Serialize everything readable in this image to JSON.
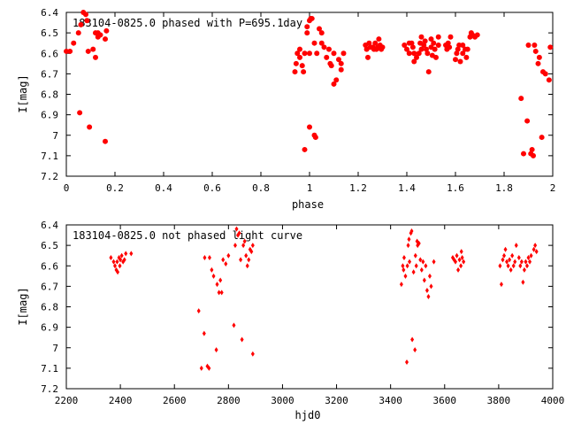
{
  "chart_data": [
    {
      "type": "scatter",
      "title": "183104-0825.0 phased with P=695.1day",
      "xlabel": "phase",
      "ylabel": "I[mag]",
      "xlim": [
        0,
        2
      ],
      "ylim": [
        7.2,
        6.4
      ],
      "x_ticks": [
        "0",
        "0.2",
        "0.4",
        "0.6",
        "0.8",
        "1",
        "1.2",
        "1.4",
        "1.6",
        "1.8",
        "2"
      ],
      "y_ticks": [
        "6.4",
        "6.5",
        "6.6",
        "6.7",
        "6.8",
        "6.9",
        "7",
        "7.1",
        "7.2"
      ],
      "grid": false,
      "legend": "none",
      "marker": "filled-circle",
      "color": "#ff0000",
      "points": [
        [
          0.0,
          6.59
        ],
        [
          0.015,
          6.59
        ],
        [
          0.03,
          6.55
        ],
        [
          0.05,
          6.5
        ],
        [
          0.055,
          6.89
        ],
        [
          0.06,
          6.46
        ],
        [
          0.07,
          6.4
        ],
        [
          0.08,
          6.41
        ],
        [
          0.085,
          6.44
        ],
        [
          0.09,
          6.59
        ],
        [
          0.095,
          6.96
        ],
        [
          0.11,
          6.58
        ],
        [
          0.12,
          6.5
        ],
        [
          0.12,
          6.62
        ],
        [
          0.13,
          6.52
        ],
        [
          0.13,
          6.5
        ],
        [
          0.14,
          6.51
        ],
        [
          0.16,
          7.03
        ],
        [
          0.16,
          6.53
        ],
        [
          0.165,
          6.49
        ],
        [
          0.94,
          6.69
        ],
        [
          0.945,
          6.65
        ],
        [
          0.95,
          6.6
        ],
        [
          0.96,
          6.62
        ],
        [
          0.96,
          6.58
        ],
        [
          0.97,
          6.66
        ],
        [
          0.975,
          6.69
        ],
        [
          0.98,
          7.07
        ],
        [
          0.98,
          6.6
        ],
        [
          0.99,
          6.5
        ],
        [
          0.99,
          6.47
        ],
        [
          1.0,
          6.6
        ],
        [
          1.0,
          6.44
        ],
        [
          1.005,
          6.43
        ],
        [
          1.01,
          6.43
        ],
        [
          1.0,
          6.96
        ],
        [
          1.02,
          7.0
        ],
        [
          1.025,
          7.01
        ],
        [
          1.02,
          6.55
        ],
        [
          1.03,
          6.6
        ],
        [
          1.04,
          6.48
        ],
        [
          1.05,
          6.55
        ],
        [
          1.05,
          6.5
        ],
        [
          1.06,
          6.57
        ],
        [
          1.07,
          6.62
        ],
        [
          1.08,
          6.58
        ],
        [
          1.085,
          6.65
        ],
        [
          1.09,
          6.66
        ],
        [
          1.1,
          6.6
        ],
        [
          1.1,
          6.75
        ],
        [
          1.11,
          6.73
        ],
        [
          1.12,
          6.63
        ],
        [
          1.13,
          6.65
        ],
        [
          1.13,
          6.68
        ],
        [
          1.14,
          6.6
        ],
        [
          1.23,
          6.56
        ],
        [
          1.235,
          6.58
        ],
        [
          1.24,
          6.62
        ],
        [
          1.245,
          6.55
        ],
        [
          1.25,
          6.57
        ],
        [
          1.26,
          6.57
        ],
        [
          1.265,
          6.58
        ],
        [
          1.27,
          6.55
        ],
        [
          1.275,
          6.58
        ],
        [
          1.28,
          6.57
        ],
        [
          1.285,
          6.53
        ],
        [
          1.29,
          6.56
        ],
        [
          1.295,
          6.58
        ],
        [
          1.3,
          6.57
        ],
        [
          1.39,
          6.56
        ],
        [
          1.4,
          6.58
        ],
        [
          1.41,
          6.6
        ],
        [
          1.41,
          6.55
        ],
        [
          1.42,
          6.55
        ],
        [
          1.425,
          6.57
        ],
        [
          1.43,
          6.6
        ],
        [
          1.43,
          6.64
        ],
        [
          1.44,
          6.62
        ],
        [
          1.45,
          6.6
        ],
        [
          1.455,
          6.55
        ],
        [
          1.46,
          6.58
        ],
        [
          1.46,
          6.52
        ],
        [
          1.47,
          6.56
        ],
        [
          1.475,
          6.54
        ],
        [
          1.48,
          6.58
        ],
        [
          1.485,
          6.6
        ],
        [
          1.49,
          6.69
        ],
        [
          1.5,
          6.57
        ],
        [
          1.5,
          6.53
        ],
        [
          1.505,
          6.61
        ],
        [
          1.51,
          6.55
        ],
        [
          1.515,
          6.58
        ],
        [
          1.52,
          6.62
        ],
        [
          1.53,
          6.56
        ],
        [
          1.53,
          6.52
        ],
        [
          1.56,
          6.56
        ],
        [
          1.565,
          6.58
        ],
        [
          1.57,
          6.55
        ],
        [
          1.575,
          6.57
        ],
        [
          1.58,
          6.52
        ],
        [
          1.6,
          6.63
        ],
        [
          1.605,
          6.6
        ],
        [
          1.61,
          6.58
        ],
        [
          1.615,
          6.56
        ],
        [
          1.62,
          6.64
        ],
        [
          1.63,
          6.6
        ],
        [
          1.63,
          6.56
        ],
        [
          1.64,
          6.58
        ],
        [
          1.645,
          6.62
        ],
        [
          1.65,
          6.58
        ],
        [
          1.66,
          6.52
        ],
        [
          1.665,
          6.5
        ],
        [
          1.67,
          6.51
        ],
        [
          1.68,
          6.52
        ],
        [
          1.69,
          6.51
        ],
        [
          1.87,
          6.82
        ],
        [
          1.88,
          7.09
        ],
        [
          1.895,
          6.93
        ],
        [
          1.9,
          6.56
        ],
        [
          1.91,
          7.09
        ],
        [
          1.915,
          7.07
        ],
        [
          1.92,
          7.1
        ],
        [
          1.925,
          6.56
        ],
        [
          1.93,
          6.59
        ],
        [
          1.94,
          6.65
        ],
        [
          1.945,
          6.62
        ],
        [
          1.955,
          7.01
        ],
        [
          1.96,
          6.69
        ],
        [
          1.97,
          6.7
        ],
        [
          1.985,
          6.73
        ],
        [
          1.99,
          6.57
        ]
      ]
    },
    {
      "type": "scatter",
      "title": "183104-0825.0 not phased light curve",
      "xlabel": "hjd0",
      "ylabel": "I[mag]",
      "xlim": [
        2200,
        4000
      ],
      "ylim": [
        7.2,
        6.4
      ],
      "x_ticks": [
        "2200",
        "2400",
        "2600",
        "2800",
        "3000",
        "3200",
        "3400",
        "3600",
        "3800",
        "4000"
      ],
      "y_ticks": [
        "6.4",
        "6.5",
        "6.6",
        "6.7",
        "6.8",
        "6.9",
        "7",
        "7.1",
        "7.2"
      ],
      "grid": false,
      "legend": "none",
      "marker": "filled-diamond",
      "color": "#ff0000",
      "points": [
        [
          2365,
          6.56
        ],
        [
          2375,
          6.58
        ],
        [
          2380,
          6.6
        ],
        [
          2385,
          6.62
        ],
        [
          2388,
          6.58
        ],
        [
          2390,
          6.63
        ],
        [
          2395,
          6.56
        ],
        [
          2398,
          6.6
        ],
        [
          2400,
          6.57
        ],
        [
          2405,
          6.55
        ],
        [
          2410,
          6.58
        ],
        [
          2415,
          6.57
        ],
        [
          2420,
          6.54
        ],
        [
          2440,
          6.54
        ],
        [
          2690,
          6.82
        ],
        [
          2700,
          7.1
        ],
        [
          2710,
          6.93
        ],
        [
          2712,
          6.56
        ],
        [
          2722,
          7.09
        ],
        [
          2728,
          7.1
        ],
        [
          2730,
          6.56
        ],
        [
          2738,
          6.62
        ],
        [
          2745,
          6.65
        ],
        [
          2755,
          7.01
        ],
        [
          2758,
          6.69
        ],
        [
          2765,
          6.73
        ],
        [
          2770,
          6.67
        ],
        [
          2775,
          6.73
        ],
        [
          2780,
          6.57
        ],
        [
          2790,
          6.59
        ],
        [
          2800,
          6.55
        ],
        [
          2820,
          6.89
        ],
        [
          2825,
          6.5
        ],
        [
          2830,
          6.42
        ],
        [
          2835,
          6.45
        ],
        [
          2840,
          6.44
        ],
        [
          2845,
          6.57
        ],
        [
          2850,
          6.96
        ],
        [
          2855,
          6.5
        ],
        [
          2860,
          6.48
        ],
        [
          2865,
          6.55
        ],
        [
          2870,
          6.6
        ],
        [
          2875,
          6.57
        ],
        [
          2880,
          6.52
        ],
        [
          2885,
          6.53
        ],
        [
          2890,
          6.5
        ],
        [
          2890,
          7.03
        ],
        [
          3440,
          6.69
        ],
        [
          3445,
          6.6
        ],
        [
          3448,
          6.62
        ],
        [
          3450,
          6.56
        ],
        [
          3455,
          6.65
        ],
        [
          3460,
          7.07
        ],
        [
          3462,
          6.6
        ],
        [
          3465,
          6.5
        ],
        [
          3468,
          6.47
        ],
        [
          3470,
          6.58
        ],
        [
          3475,
          6.44
        ],
        [
          3478,
          6.43
        ],
        [
          3480,
          6.96
        ],
        [
          3485,
          6.63
        ],
        [
          3490,
          7.01
        ],
        [
          3492,
          6.55
        ],
        [
          3495,
          6.6
        ],
        [
          3498,
          6.48
        ],
        [
          3500,
          6.5
        ],
        [
          3505,
          6.49
        ],
        [
          3510,
          6.57
        ],
        [
          3515,
          6.62
        ],
        [
          3520,
          6.58
        ],
        [
          3525,
          6.67
        ],
        [
          3530,
          6.6
        ],
        [
          3535,
          6.72
        ],
        [
          3540,
          6.75
        ],
        [
          3545,
          6.65
        ],
        [
          3550,
          6.7
        ],
        [
          3560,
          6.58
        ],
        [
          3630,
          6.56
        ],
        [
          3635,
          6.57
        ],
        [
          3640,
          6.58
        ],
        [
          3645,
          6.55
        ],
        [
          3650,
          6.62
        ],
        [
          3655,
          6.57
        ],
        [
          3660,
          6.6
        ],
        [
          3662,
          6.53
        ],
        [
          3665,
          6.56
        ],
        [
          3670,
          6.58
        ],
        [
          3805,
          6.6
        ],
        [
          3810,
          6.69
        ],
        [
          3815,
          6.57
        ],
        [
          3820,
          6.55
        ],
        [
          3825,
          6.52
        ],
        [
          3830,
          6.58
        ],
        [
          3835,
          6.6
        ],
        [
          3840,
          6.57
        ],
        [
          3845,
          6.62
        ],
        [
          3850,
          6.55
        ],
        [
          3855,
          6.6
        ],
        [
          3860,
          6.58
        ],
        [
          3865,
          6.5
        ],
        [
          3875,
          6.56
        ],
        [
          3880,
          6.6
        ],
        [
          3885,
          6.58
        ],
        [
          3890,
          6.68
        ],
        [
          3895,
          6.62
        ],
        [
          3900,
          6.58
        ],
        [
          3905,
          6.6
        ],
        [
          3910,
          6.56
        ],
        [
          3915,
          6.58
        ],
        [
          3920,
          6.55
        ],
        [
          3930,
          6.52
        ],
        [
          3935,
          6.5
        ],
        [
          3940,
          6.53
        ]
      ]
    }
  ]
}
